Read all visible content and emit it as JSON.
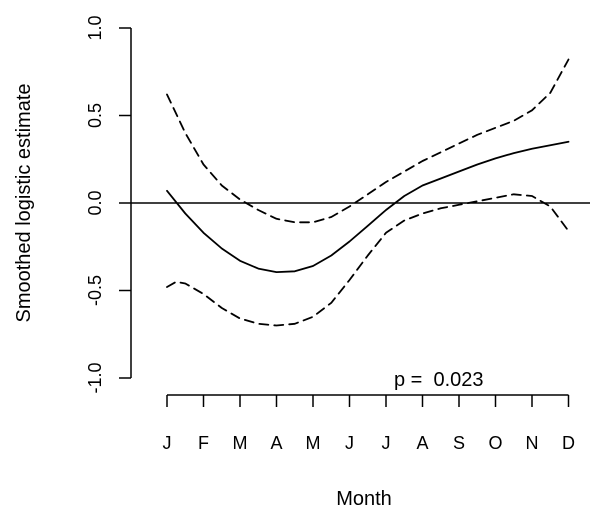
{
  "chart_data": {
    "type": "line",
    "xlabel": "Month",
    "ylabel": "Smoothed logistic estimate",
    "x_tick_labels": [
      "J",
      "F",
      "M",
      "A",
      "M",
      "J",
      "J",
      "A",
      "S",
      "O",
      "N",
      "D"
    ],
    "y_ticks": [
      -1.0,
      -0.5,
      0.0,
      0.5,
      1.0
    ],
    "y_tick_labels": [
      "-1.0",
      "-0.5",
      "0.0",
      "0.5",
      "1.0"
    ],
    "xlim": [
      1,
      12
    ],
    "ylim": [
      -1.0,
      1.0
    ],
    "annotation": "p =  0.023",
    "series": [
      {
        "style": "solid",
        "x": [
          1,
          1.5,
          2,
          2.5,
          3,
          3.5,
          4,
          4.5,
          5,
          5.5,
          6,
          6.5,
          7,
          7.5,
          8,
          8.5,
          9,
          9.5,
          10,
          10.5,
          11,
          11.5,
          12
        ],
        "y": [
          0.07,
          -0.06,
          -0.17,
          -0.26,
          -0.33,
          -0.375,
          -0.395,
          -0.39,
          -0.36,
          -0.3,
          -0.22,
          -0.13,
          -0.04,
          0.04,
          0.1,
          0.14,
          0.18,
          0.22,
          0.255,
          0.285,
          0.31,
          0.33,
          0.35
        ]
      },
      {
        "style": "dashed",
        "x": [
          1,
          1.5,
          2,
          2.5,
          3,
          3.5,
          4,
          4.5,
          5,
          5.5,
          6,
          6.5,
          7,
          7.5,
          8,
          8.5,
          9,
          9.5,
          10,
          10.5,
          11,
          11.5,
          12
        ],
        "y": [
          0.62,
          0.4,
          0.22,
          0.1,
          0.02,
          -0.04,
          -0.09,
          -0.11,
          -0.11,
          -0.08,
          -0.02,
          0.05,
          0.12,
          0.18,
          0.24,
          0.29,
          0.34,
          0.39,
          0.43,
          0.47,
          0.53,
          0.63,
          0.82
        ]
      },
      {
        "style": "dashed",
        "x": [
          1,
          1.25,
          1.5,
          2,
          2.5,
          3,
          3.5,
          4,
          4.5,
          5,
          5.5,
          6,
          6.5,
          7,
          7.5,
          8,
          8.5,
          9,
          9.5,
          10,
          10.5,
          11,
          11.5,
          12
        ],
        "y": [
          -0.48,
          -0.45,
          -0.46,
          -0.52,
          -0.6,
          -0.66,
          -0.69,
          -0.7,
          -0.69,
          -0.65,
          -0.57,
          -0.44,
          -0.3,
          -0.17,
          -0.1,
          -0.06,
          -0.03,
          -0.01,
          0.01,
          0.03,
          0.05,
          0.04,
          -0.02,
          -0.16
        ]
      }
    ],
    "hline": 0.0,
    "grid": false,
    "legend": "none"
  }
}
